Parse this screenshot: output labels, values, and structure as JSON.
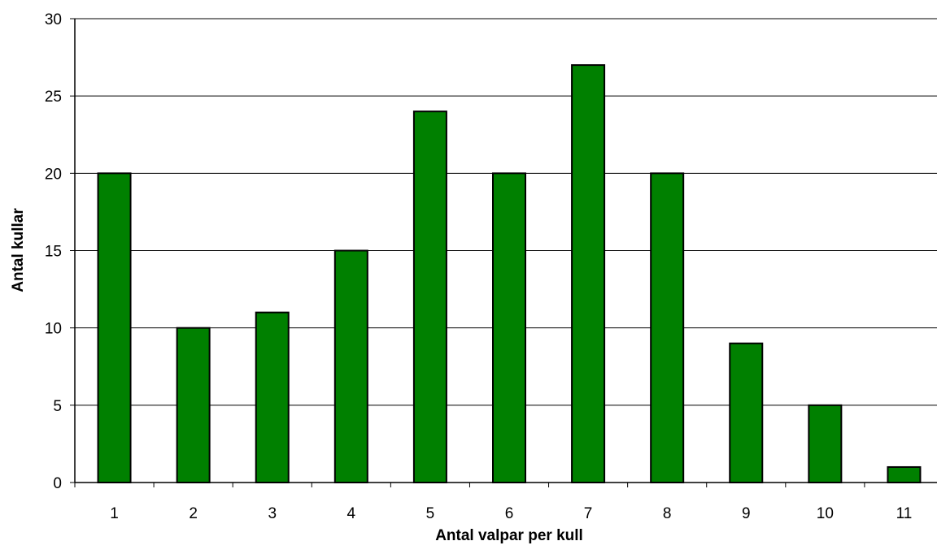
{
  "chart_data": {
    "type": "bar",
    "title": "",
    "xlabel": "Antal valpar per kull",
    "ylabel": "Antal kullar",
    "categories": [
      "1",
      "2",
      "3",
      "4",
      "5",
      "6",
      "7",
      "8",
      "9",
      "10",
      "11"
    ],
    "values": [
      20,
      10,
      11,
      15,
      24,
      20,
      27,
      20,
      9,
      5,
      1
    ],
    "ylim": [
      0,
      30
    ],
    "yticks": [
      "0",
      "5",
      "10",
      "15",
      "20",
      "25",
      "30"
    ],
    "grid": true,
    "legend": "none",
    "bar_color": "#008000",
    "bar_outline_color": "#000000"
  }
}
